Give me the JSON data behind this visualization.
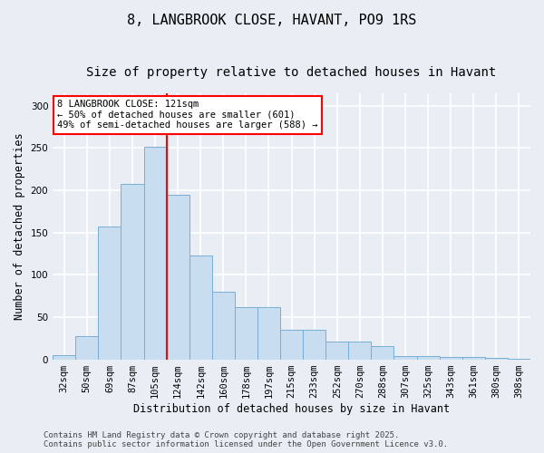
{
  "title1": "8, LANGBROOK CLOSE, HAVANT, PO9 1RS",
  "title2": "Size of property relative to detached houses in Havant",
  "xlabel": "Distribution of detached houses by size in Havant",
  "ylabel": "Number of detached properties",
  "categories": [
    "32sqm",
    "50sqm",
    "69sqm",
    "87sqm",
    "105sqm",
    "124sqm",
    "142sqm",
    "160sqm",
    "178sqm",
    "197sqm",
    "215sqm",
    "233sqm",
    "252sqm",
    "270sqm",
    "288sqm",
    "307sqm",
    "325sqm",
    "343sqm",
    "361sqm",
    "380sqm",
    "398sqm"
  ],
  "values": [
    5,
    27,
    157,
    207,
    251,
    195,
    123,
    80,
    62,
    62,
    35,
    35,
    21,
    21,
    16,
    4,
    4,
    3,
    3,
    2,
    1
  ],
  "bar_color": "#c8ddf0",
  "bar_edge_color": "#7aaed4",
  "vline_x": 4.5,
  "vline_color": "red",
  "annotation_title": "8 LANGBROOK CLOSE: 121sqm",
  "annotation_line2": "← 50% of detached houses are smaller (601)",
  "annotation_line3": "49% of semi-detached houses are larger (588) →",
  "annotation_box_color": "white",
  "annotation_box_edge": "red",
  "footer1": "Contains HM Land Registry data © Crown copyright and database right 2025.",
  "footer2": "Contains public sector information licensed under the Open Government Licence v3.0.",
  "ylim": [
    0,
    315
  ],
  "yticks": [
    0,
    50,
    100,
    150,
    200,
    250,
    300
  ],
  "background_color": "#e8eef4",
  "grid_color": "white",
  "title_fontsize": 11,
  "subtitle_fontsize": 10,
  "axis_label_fontsize": 8.5,
  "tick_fontsize": 7.5,
  "annotation_fontsize": 7.5,
  "footer_fontsize": 6.5
}
